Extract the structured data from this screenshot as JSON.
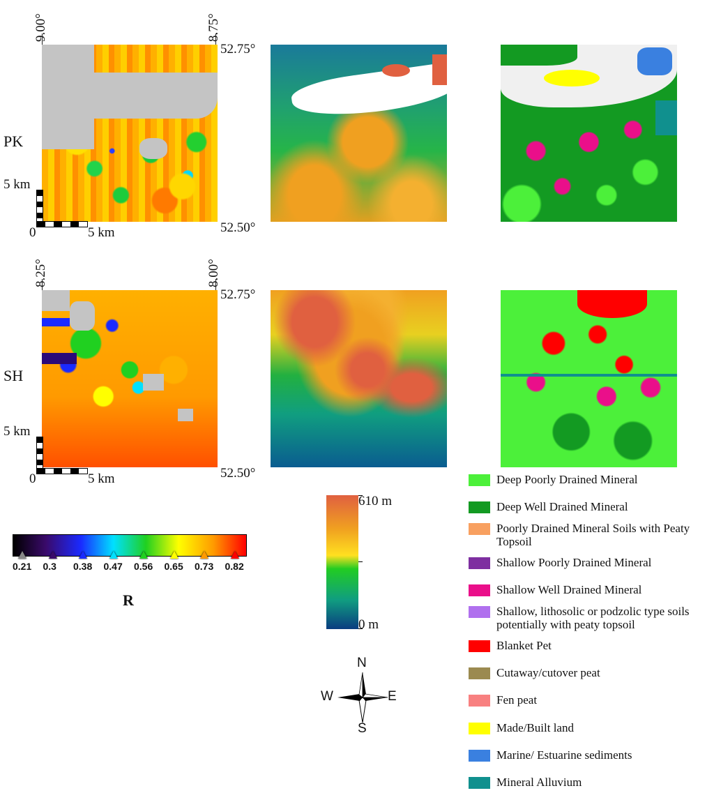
{
  "rows": [
    {
      "label": "PK",
      "lon_left": "9.00°",
      "lon_right": "8.75°",
      "lat_top": "52.75°",
      "lat_bottom": "52.50°",
      "scale_v": "5 km",
      "scale_h": "5 km",
      "scale_origin": "0"
    },
    {
      "label": "SH",
      "lon_left": "8.25°",
      "lon_right": "8.00°",
      "lat_top": "52.75°",
      "lat_bottom": "52.50°",
      "scale_v": "5 km",
      "scale_h": "5 km",
      "scale_origin": "0"
    }
  ],
  "r_colorbar": {
    "ticks": [
      "0.21",
      "0.3",
      "0.38",
      "0.47",
      "0.56",
      "0.65",
      "0.73",
      "0.82"
    ],
    "title": "R",
    "colors": [
      "#000000",
      "#3a0a6a",
      "#1a2aff",
      "#00e0ff",
      "#20d020",
      "#ffff00",
      "#ff9a00",
      "#ff0000"
    ]
  },
  "elevation_colorbar": {
    "max_label": "610 m",
    "min_label": "0 m",
    "colors": [
      "#e06040",
      "#f0a020",
      "#ffe020",
      "#22cc22",
      "#109e80",
      "#0a3c80"
    ]
  },
  "compass": {
    "n": "N",
    "s": "S",
    "e": "E",
    "w": "W"
  },
  "soil_legend": [
    {
      "label": "Deep Poorly Drained Mineral",
      "color": "#4cf03a"
    },
    {
      "label": "Deep Well Drained Mineral",
      "color": "#139a22"
    },
    {
      "label": "Poorly Drained Mineral Soils with Peaty Topsoil",
      "color": "#f8a060"
    },
    {
      "label": "Shallow Poorly Drained Mineral",
      "color": "#7e2fa0"
    },
    {
      "label": "Shallow Well Drained Mineral",
      "color": "#ea0f8a"
    },
    {
      "label": "Shallow, lithosolic or podzolic type soils potentially with peaty topsoil",
      "color": "#b070ee"
    },
    {
      "label": "Blanket Pet",
      "color": "#ff0000"
    },
    {
      "label": "Cutaway/cutover peat",
      "color": "#9b8a50"
    },
    {
      "label": "Fen peat",
      "color": "#f88080"
    },
    {
      "label": "Made/Built land",
      "color": "#ffff00"
    },
    {
      "label": "Marine/ Estuarine sediments",
      "color": "#3a80e0"
    },
    {
      "label": "Mineral Alluvium",
      "color": "#10908e"
    }
  ]
}
